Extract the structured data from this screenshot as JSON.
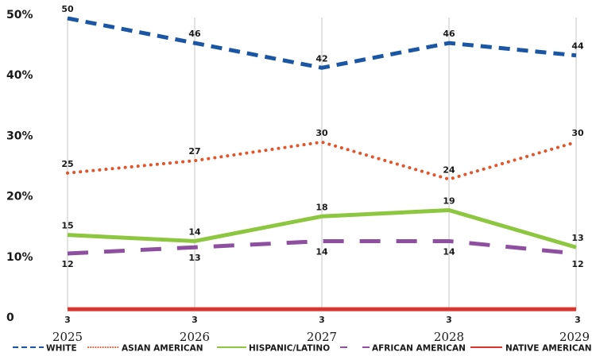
{
  "chart_data": {
    "type": "line",
    "title": "",
    "xlabel": "",
    "ylabel": "",
    "categories": [
      "2025",
      "2026",
      "2027",
      "2028",
      "2029"
    ],
    "ylim": [
      0,
      50
    ],
    "y_ticks": [
      {
        "value": 0,
        "label": "0"
      },
      {
        "value": 10,
        "label": "10%"
      },
      {
        "value": 20,
        "label": "20%"
      },
      {
        "value": 30,
        "label": "30%"
      },
      {
        "value": 40,
        "label": "40%"
      },
      {
        "value": 50,
        "label": "50%"
      }
    ],
    "grid": "vertical",
    "legend_position": "bottom",
    "series": [
      {
        "name": "WHITE",
        "values": [
          50,
          46,
          42,
          46,
          44
        ],
        "color": "#1a56a3",
        "style": "dashed",
        "label_side": "above"
      },
      {
        "name": "ASIAN AMERICAN",
        "values": [
          25,
          27,
          30,
          24,
          30
        ],
        "color": "#e4542b",
        "style": "dotted",
        "label_side": "above"
      },
      {
        "name": "HISPANIC/LATINO",
        "values": [
          15,
          14,
          18,
          19,
          13
        ],
        "color": "#8dc63f",
        "style": "solid",
        "label_side": "above"
      },
      {
        "name": "AFRICAN AMERICAN",
        "values": [
          12,
          13,
          14,
          14,
          12
        ],
        "color": "#8e4fa0",
        "style": "longdash",
        "label_side": "below"
      },
      {
        "name": "NATIVE AMERICAN",
        "values": [
          3,
          3,
          3,
          3,
          3
        ],
        "color": "#d9352e",
        "style": "solid",
        "label_side": "below"
      }
    ]
  }
}
